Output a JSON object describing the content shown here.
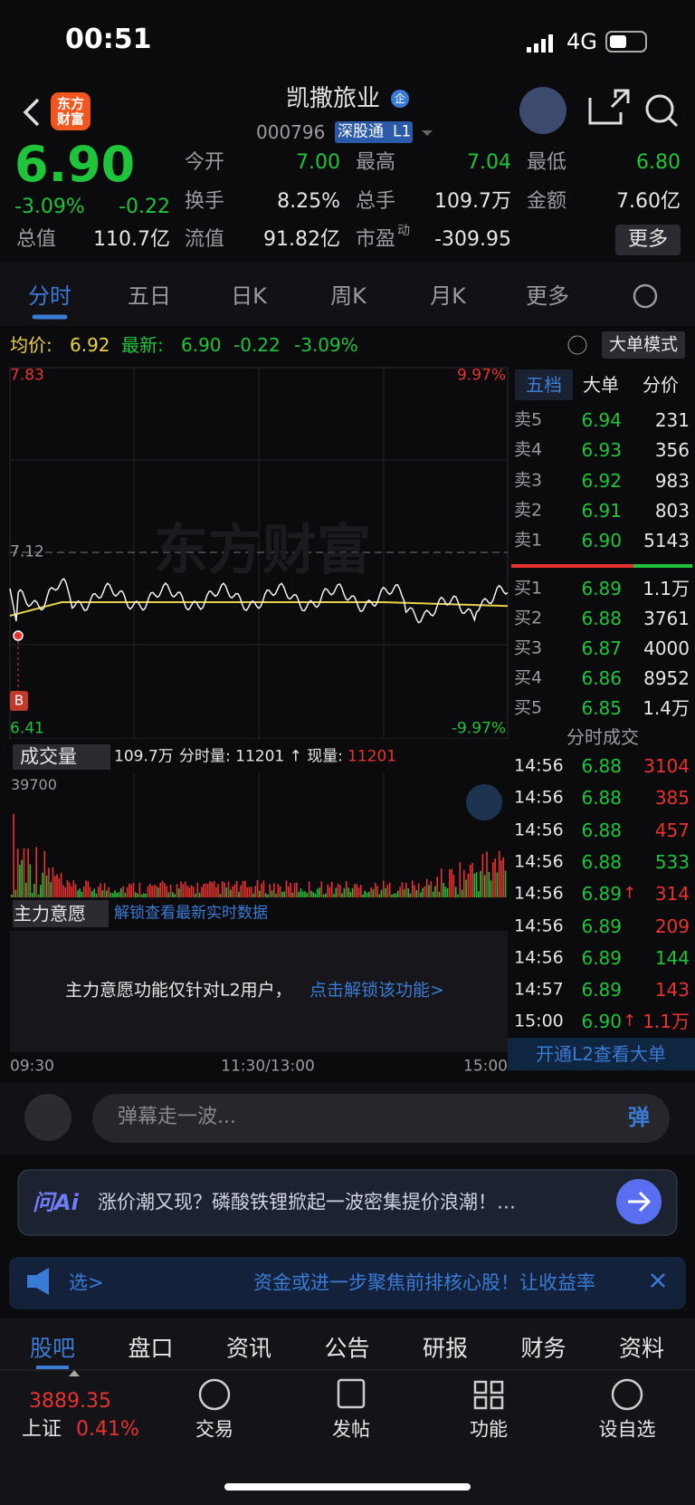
{
  "status_bar": {
    "time": "00:51",
    "network": "4G"
  },
  "header": {
    "logo": "东方财富",
    "title": "凯撒旅业",
    "badge": "企",
    "code": "000796",
    "tags": [
      "深股通",
      "L1"
    ]
  },
  "quote": {
    "price": "6.90",
    "change_pct": "-3.09%",
    "change": "-0.22",
    "stats": [
      {
        "label": "今开",
        "value": "7.00"
      },
      {
        "label": "最高",
        "value": "7.04"
      },
      {
        "label": "最低",
        "value": "6.80"
      },
      {
        "label": "换手",
        "value": "8.25%"
      },
      {
        "label": "总手",
        "value": "109.7万"
      },
      {
        "label": "金额",
        "value": "7.60亿"
      },
      {
        "label": "总值",
        "value": "110.7亿"
      },
      {
        "label": "流值",
        "value": "91.82亿"
      },
      {
        "label": "市盈",
        "sup": "动",
        "value": "-309.95"
      }
    ],
    "more": "更多"
  },
  "tabs": [
    "分时",
    "五日",
    "日K",
    "周K",
    "月K",
    "更多"
  ],
  "summary": {
    "avg_label": "均价:",
    "avg": "6.92",
    "latest_label": "最新:",
    "latest": "6.90",
    "change": "-0.22",
    "change_pct": "-3.09%",
    "mode": "大单模式"
  },
  "chart": {
    "high": "7.83",
    "high_pct": "9.97%",
    "ref": "7.12",
    "low": "6.41",
    "low_pct": "-9.97%",
    "marker": "B",
    "watermark": "东方财富"
  },
  "volume": {
    "label": "成交量",
    "total": "109.7万",
    "detail": "分时量: 11201 ↑ 现量:",
    "current": "11201",
    "max": "39700"
  },
  "main_force": {
    "label": "主力意愿",
    "unlock": "解锁查看最新实时数据",
    "notice": "主力意愿功能仅针对L2用户，",
    "link": "点击解锁该功能>"
  },
  "time_axis": [
    "09:30",
    "11:30/13:00",
    "15:00"
  ],
  "order_book": {
    "tabs": [
      "五档",
      "大单",
      "分价"
    ],
    "asks": [
      {
        "label": "卖5",
        "price": "6.94",
        "volume": "231"
      },
      {
        "label": "卖4",
        "price": "6.93",
        "volume": "356"
      },
      {
        "label": "卖3",
        "price": "6.92",
        "volume": "983"
      },
      {
        "label": "卖2",
        "price": "6.91",
        "volume": "803"
      },
      {
        "label": "卖1",
        "price": "6.90",
        "volume": "5143"
      }
    ],
    "bids": [
      {
        "label": "买1",
        "price": "6.89",
        "volume": "1.1万"
      },
      {
        "label": "买2",
        "price": "6.88",
        "volume": "3761"
      },
      {
        "label": "买3",
        "price": "6.87",
        "volume": "4000"
      },
      {
        "label": "买4",
        "price": "6.86",
        "volume": "8952"
      },
      {
        "label": "买5",
        "price": "6.85",
        "volume": "1.4万"
      }
    ],
    "trades_title": "分时成交",
    "trades": [
      {
        "time": "14:56",
        "price": "6.88",
        "volume": "3104",
        "color": "#e8322f"
      },
      {
        "time": "14:56",
        "price": "6.88",
        "volume": "385",
        "color": "#e8322f"
      },
      {
        "time": "14:56",
        "price": "6.88",
        "volume": "457",
        "color": "#e8322f"
      },
      {
        "time": "14:56",
        "price": "6.88",
        "volume": "533",
        "color": "#1ec43a"
      },
      {
        "time": "14:56",
        "price": "6.89",
        "arrow": "↑",
        "volume": "314",
        "color": "#e8322f"
      },
      {
        "time": "14:56",
        "price": "6.89",
        "volume": "209",
        "color": "#e8322f"
      },
      {
        "time": "14:56",
        "price": "6.89",
        "volume": "144",
        "color": "#1ec43a"
      },
      {
        "time": "14:57",
        "price": "6.89",
        "volume": "143",
        "color": "#e8322f"
      },
      {
        "time": "15:00",
        "price": "6.90",
        "arrow": "↑",
        "volume": "1.1万",
        "color": "#e8322f"
      }
    ],
    "l2_button": "开通L2查看大单"
  },
  "comment": {
    "placeholder": "弹幕走一波...",
    "button": "弹"
  },
  "ai": {
    "logo": "问Ai",
    "text": "涨价潮又现？磷酸铁锂掀起一波密集提价浪潮！…"
  },
  "notice": {
    "prefix": "选>",
    "text": "资金或进一步聚焦前排核心股！让收益率"
  },
  "bottom_tabs": [
    "股吧",
    "盘口",
    "资讯",
    "公告",
    "研报",
    "财务",
    "资料"
  ],
  "nav": {
    "index_value": "3889.35",
    "index_name": "上证",
    "index_change": "0.41%",
    "items": [
      "交易",
      "发帖",
      "功能",
      "设自选"
    ]
  }
}
